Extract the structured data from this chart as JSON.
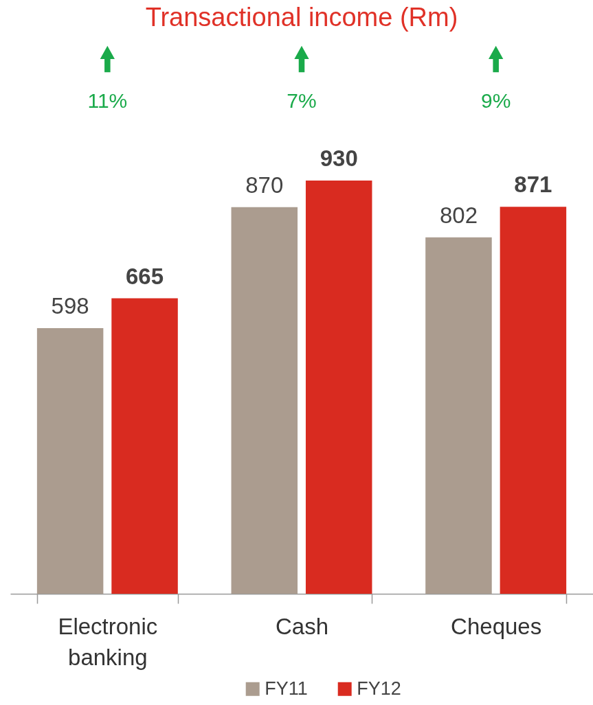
{
  "chart_data": {
    "type": "bar",
    "title": "Transactional income (Rm)",
    "categories": [
      "Electronic banking",
      "Cash",
      "Cheques"
    ],
    "series": [
      {
        "name": "FY11",
        "color": "#ab9c8f",
        "values": [
          598,
          870,
          802
        ]
      },
      {
        "name": "FY12",
        "color": "#d92b20",
        "values": [
          665,
          930,
          871
        ]
      }
    ],
    "data_labels": true,
    "legend": "bottom",
    "grid": false,
    "annotations": [
      "11%",
      "7%",
      "9%"
    ]
  }
}
